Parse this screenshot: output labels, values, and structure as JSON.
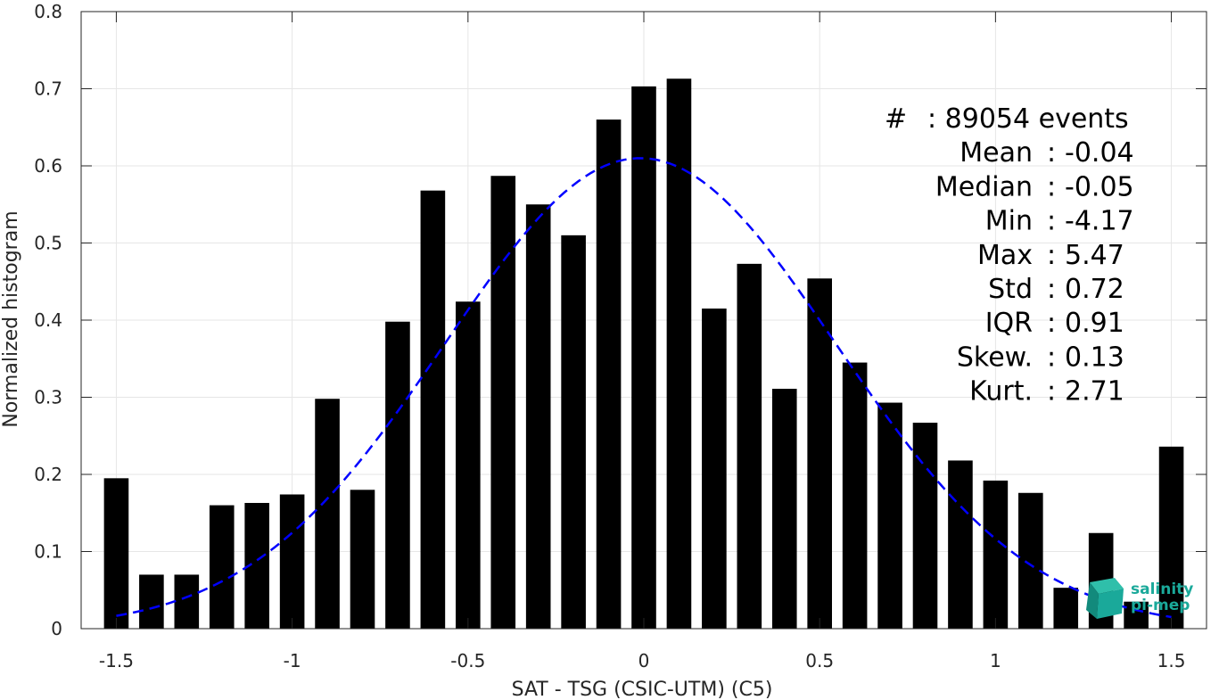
{
  "chart_data": {
    "type": "bar",
    "title": "",
    "xlabel": "SAT - TSG (CSIC-UTM) (C5)",
    "ylabel": "Normalized histogram",
    "xlim": [
      -1.6,
      1.6
    ],
    "ylim": [
      0,
      0.8
    ],
    "grid": true,
    "xticks": [
      -1.5,
      -1,
      -0.5,
      0,
      0.5,
      1,
      1.5
    ],
    "xtick_labels": [
      "-1.5",
      "-1",
      "-0.5",
      "0",
      "0.5",
      "1",
      "1.5"
    ],
    "yticks": [
      0,
      0.1,
      0.2,
      0.3,
      0.4,
      0.5,
      0.6,
      0.7,
      0.8
    ],
    "ytick_labels": [
      "0",
      "0.1",
      "0.2",
      "0.3",
      "0.4",
      "0.5",
      "0.6",
      "0.7",
      "0.8"
    ],
    "bar_width": 0.07,
    "bar_color": "#000000",
    "x": [
      -1.5,
      -1.4,
      -1.3,
      -1.2,
      -1.1,
      -1.0,
      -0.9,
      -0.8,
      -0.7,
      -0.6,
      -0.5,
      -0.4,
      -0.3,
      -0.2,
      -0.1,
      0.0,
      0.1,
      0.2,
      0.3,
      0.4,
      0.5,
      0.6,
      0.7,
      0.8,
      0.9,
      1.0,
      1.1,
      1.2,
      1.3,
      1.4,
      1.5
    ],
    "values": [
      0.195,
      0.07,
      0.07,
      0.16,
      0.163,
      0.174,
      0.298,
      0.18,
      0.398,
      0.568,
      0.424,
      0.587,
      0.55,
      0.51,
      0.66,
      0.703,
      0.713,
      0.415,
      0.473,
      0.311,
      0.454,
      0.345,
      0.293,
      0.267,
      0.218,
      0.192,
      0.176,
      0.053,
      0.124,
      0.035,
      0.236
    ],
    "fit": {
      "type": "gaussian",
      "color": "#0000ff",
      "style": "dashed",
      "mean": -0.01,
      "std": 0.555,
      "peak": 0.61,
      "xrange": [
        -1.5,
        1.5
      ]
    },
    "stats": [
      {
        "label": "#",
        "sep": ":",
        "value": "89054 events"
      },
      {
        "label": "Mean",
        "sep": ":",
        "value": "-0.04"
      },
      {
        "label": "Median",
        "sep": ":",
        "value": "-0.05"
      },
      {
        "label": "Min",
        "sep": ":",
        "value": "-4.17"
      },
      {
        "label": "Max",
        "sep": ":",
        "value": "5.47"
      },
      {
        "label": "Std",
        "sep": ":",
        "value": "0.72"
      },
      {
        "label": "IQR",
        "sep": ":",
        "value": "0.91"
      },
      {
        "label": "Skew.",
        "sep": ":",
        "value": "0.13"
      },
      {
        "label": "Kurt.",
        "sep": ":",
        "value": "2.71"
      }
    ]
  },
  "logo": {
    "line1": "salinity",
    "line2": "pi-mep",
    "color": "#1aa99a"
  }
}
